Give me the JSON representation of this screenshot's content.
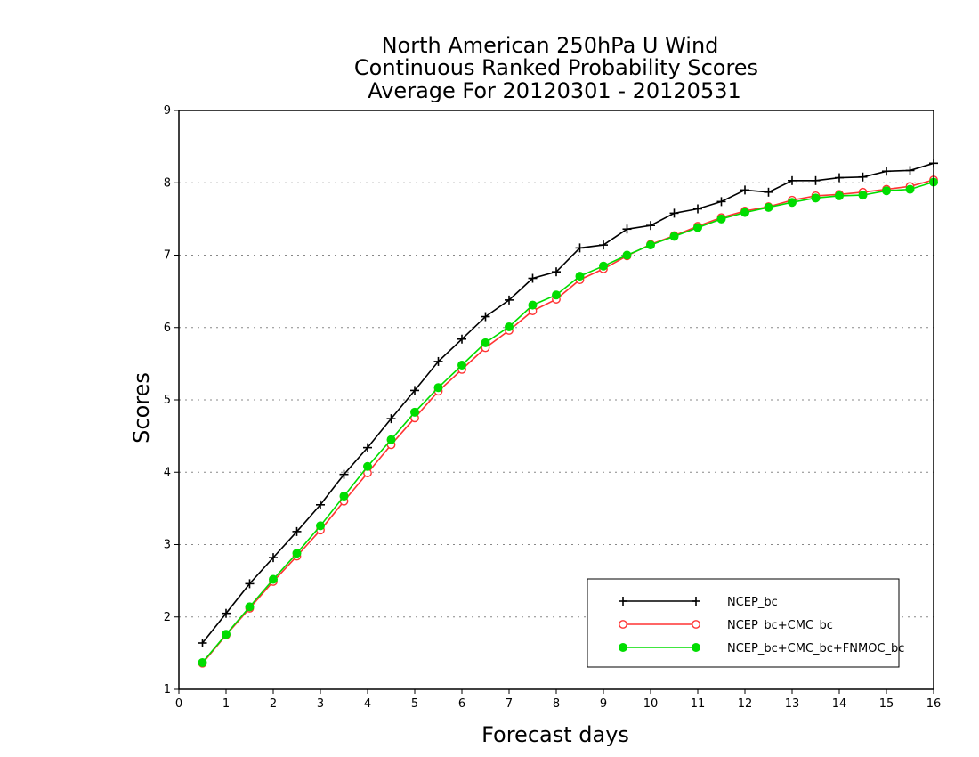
{
  "chart_data": {
    "type": "line",
    "title_lines": [
      "North American 250hPa U Wind",
      "Continuous Ranked Probability Scores",
      "Average For 20120301 - 20120531"
    ],
    "xlabel": "Forecast days",
    "ylabel": "Scores",
    "xlim": [
      0,
      16
    ],
    "ylim": [
      1,
      9
    ],
    "xticks": [
      0,
      1,
      2,
      3,
      4,
      5,
      6,
      7,
      8,
      9,
      10,
      11,
      12,
      13,
      14,
      15,
      16
    ],
    "yticks": [
      1,
      2,
      3,
      4,
      5,
      6,
      7,
      8,
      9
    ],
    "grid": "horizontal dotted",
    "legend_position": "bottom-right",
    "x": [
      0.5,
      1,
      1.5,
      2,
      2.5,
      3,
      3.5,
      4,
      4.5,
      5,
      5.5,
      6,
      6.5,
      7,
      7.5,
      8,
      8.5,
      9,
      9.5,
      10,
      10.5,
      11,
      11.5,
      12,
      12.5,
      13,
      13.5,
      14,
      14.5,
      15,
      15.5,
      16
    ],
    "series": [
      {
        "name": "NCEP_bc",
        "color": "#000000",
        "marker": "plus",
        "values": [
          1.64,
          2.05,
          2.46,
          2.82,
          3.18,
          3.55,
          3.97,
          4.34,
          4.74,
          5.13,
          5.53,
          5.84,
          6.15,
          6.38,
          6.68,
          6.77,
          7.1,
          7.14,
          7.36,
          7.41,
          7.58,
          7.64,
          7.74,
          7.9,
          7.87,
          8.03,
          8.03,
          8.07,
          8.08,
          8.16,
          8.17,
          8.27
        ]
      },
      {
        "name": "NCEP_bc+CMC_bc",
        "color": "#ff3333",
        "marker": "open-circle",
        "values": [
          1.36,
          1.75,
          2.12,
          2.49,
          2.84,
          3.2,
          3.6,
          3.99,
          4.38,
          4.75,
          5.12,
          5.42,
          5.72,
          5.96,
          6.23,
          6.39,
          6.66,
          6.81,
          6.99,
          7.15,
          7.27,
          7.4,
          7.52,
          7.61,
          7.67,
          7.76,
          7.82,
          7.84,
          7.87,
          7.91,
          7.95,
          8.04
        ]
      },
      {
        "name": "NCEP_bc+CMC_bc+FNMOC_bc",
        "color": "#00dd00",
        "marker": "filled-circle",
        "values": [
          1.37,
          1.76,
          2.14,
          2.52,
          2.88,
          3.26,
          3.67,
          4.08,
          4.45,
          4.83,
          5.17,
          5.48,
          5.79,
          6.01,
          6.31,
          6.45,
          6.71,
          6.85,
          7.0,
          7.14,
          7.26,
          7.38,
          7.5,
          7.59,
          7.66,
          7.73,
          7.79,
          7.82,
          7.83,
          7.89,
          7.91,
          8.01
        ]
      }
    ]
  }
}
